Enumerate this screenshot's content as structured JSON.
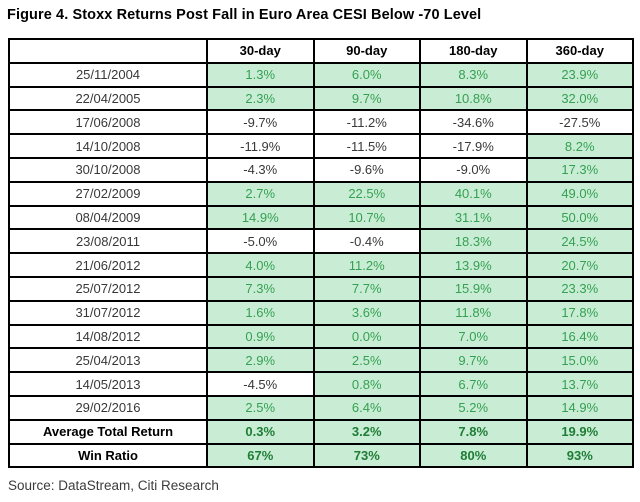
{
  "title": "Figure 4. Stoxx Returns Post Fall in Euro Area CESI Below -70 Level",
  "source": "Source: DataStream, Citi Research",
  "colors": {
    "highlight_bg": "#c9edd4",
    "highlight_text": "#35a052",
    "summary_highlight_text": "#1f7d36",
    "grid": "#000000",
    "body_text": "#383838"
  },
  "chart_data": {
    "type": "table",
    "title": "Figure 4. Stoxx Returns Post Fall in Euro Area CESI Below -70 Level",
    "columns": [
      "",
      "30-day",
      "90-day",
      "180-day",
      "360-day"
    ],
    "rows": [
      {
        "date": "25/11/2004",
        "values": [
          "1.3%",
          "6.0%",
          "8.3%",
          "23.9%"
        ],
        "highlight": [
          true,
          true,
          true,
          true
        ]
      },
      {
        "date": "22/04/2005",
        "values": [
          "2.3%",
          "9.7%",
          "10.8%",
          "32.0%"
        ],
        "highlight": [
          true,
          true,
          true,
          true
        ]
      },
      {
        "date": "17/06/2008",
        "values": [
          "-9.7%",
          "-11.2%",
          "-34.6%",
          "-27.5%"
        ],
        "highlight": [
          false,
          false,
          false,
          false
        ]
      },
      {
        "date": "14/10/2008",
        "values": [
          "-11.9%",
          "-11.5%",
          "-17.9%",
          "8.2%"
        ],
        "highlight": [
          false,
          false,
          false,
          true
        ]
      },
      {
        "date": "30/10/2008",
        "values": [
          "-4.3%",
          "-9.6%",
          "-9.0%",
          "17.3%"
        ],
        "highlight": [
          false,
          false,
          false,
          true
        ]
      },
      {
        "date": "27/02/2009",
        "values": [
          "2.7%",
          "22.5%",
          "40.1%",
          "49.0%"
        ],
        "highlight": [
          true,
          true,
          true,
          true
        ]
      },
      {
        "date": "08/04/2009",
        "values": [
          "14.9%",
          "10.7%",
          "31.1%",
          "50.0%"
        ],
        "highlight": [
          true,
          true,
          true,
          true
        ]
      },
      {
        "date": "23/08/2011",
        "values": [
          "-5.0%",
          "-0.4%",
          "18.3%",
          "24.5%"
        ],
        "highlight": [
          false,
          false,
          true,
          true
        ]
      },
      {
        "date": "21/06/2012",
        "values": [
          "4.0%",
          "11.2%",
          "13.9%",
          "20.7%"
        ],
        "highlight": [
          true,
          true,
          true,
          true
        ]
      },
      {
        "date": "25/07/2012",
        "values": [
          "7.3%",
          "7.7%",
          "15.9%",
          "23.3%"
        ],
        "highlight": [
          true,
          true,
          true,
          true
        ]
      },
      {
        "date": "31/07/2012",
        "values": [
          "1.6%",
          "3.6%",
          "11.8%",
          "17.8%"
        ],
        "highlight": [
          true,
          true,
          true,
          true
        ]
      },
      {
        "date": "14/08/2012",
        "values": [
          "0.9%",
          "0.0%",
          "7.0%",
          "16.4%"
        ],
        "highlight": [
          true,
          true,
          true,
          true
        ]
      },
      {
        "date": "25/04/2013",
        "values": [
          "2.9%",
          "2.5%",
          "9.7%",
          "15.0%"
        ],
        "highlight": [
          true,
          true,
          true,
          true
        ]
      },
      {
        "date": "14/05/2013",
        "values": [
          "-4.5%",
          "0.8%",
          "6.7%",
          "13.7%"
        ],
        "highlight": [
          false,
          true,
          true,
          true
        ]
      },
      {
        "date": "29/02/2016",
        "values": [
          "2.5%",
          "6.4%",
          "5.2%",
          "14.9%"
        ],
        "highlight": [
          true,
          true,
          true,
          true
        ]
      }
    ],
    "summary_rows": [
      {
        "label": "Average Total Return",
        "values": [
          "0.3%",
          "3.2%",
          "7.8%",
          "19.9%"
        ],
        "highlight": [
          true,
          true,
          true,
          true
        ]
      },
      {
        "label": "Win Ratio",
        "values": [
          "67%",
          "73%",
          "80%",
          "93%"
        ],
        "highlight": [
          true,
          true,
          true,
          true
        ]
      }
    ]
  }
}
